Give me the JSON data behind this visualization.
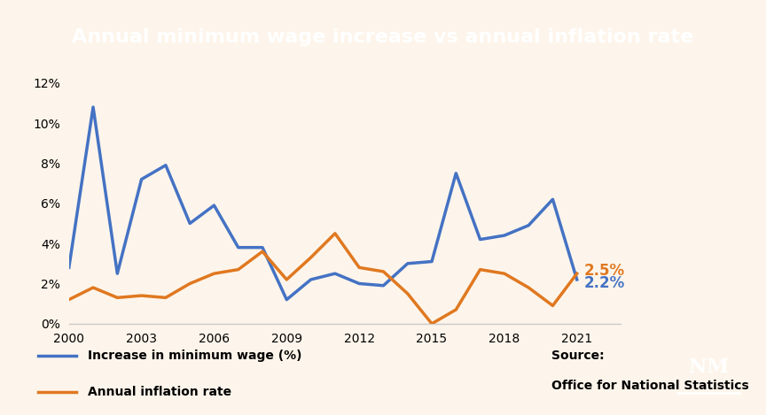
{
  "title": "Annual minimum wage increase vs annual inflation rate",
  "background_color": "#fdf5eb",
  "title_bg_color": "#000000",
  "title_text_color": "#ffffff",
  "years": [
    2000,
    2001,
    2002,
    2003,
    2004,
    2005,
    2006,
    2007,
    2008,
    2009,
    2010,
    2011,
    2012,
    2013,
    2014,
    2015,
    2016,
    2017,
    2018,
    2019,
    2020,
    2021
  ],
  "min_wage": [
    2.8,
    10.8,
    2.5,
    7.2,
    7.9,
    5.0,
    5.9,
    3.8,
    3.8,
    1.2,
    2.2,
    2.5,
    2.0,
    1.9,
    3.0,
    3.1,
    7.5,
    4.2,
    4.4,
    4.9,
    6.2,
    2.2
  ],
  "inflation": [
    1.2,
    1.8,
    1.3,
    1.4,
    1.3,
    2.0,
    2.5,
    2.7,
    3.6,
    2.2,
    3.3,
    4.5,
    2.8,
    2.6,
    1.5,
    0.0,
    0.7,
    2.7,
    2.5,
    1.8,
    0.9,
    2.5
  ],
  "min_wage_color": "#4472c4",
  "inflation_color": "#e07820",
  "min_wage_label": "Increase in minimum wage (%)",
  "inflation_label": "Annual inflation rate",
  "source_text1": "Source:",
  "source_text2": "Office for National Statistics",
  "end_label_inflation": "2.5%",
  "end_label_wage": "2.2%",
  "ylim": [
    0,
    12
  ],
  "yticks": [
    0,
    2,
    4,
    6,
    8,
    10,
    12
  ],
  "xticks": [
    2000,
    2003,
    2006,
    2009,
    2012,
    2015,
    2018,
    2021
  ]
}
